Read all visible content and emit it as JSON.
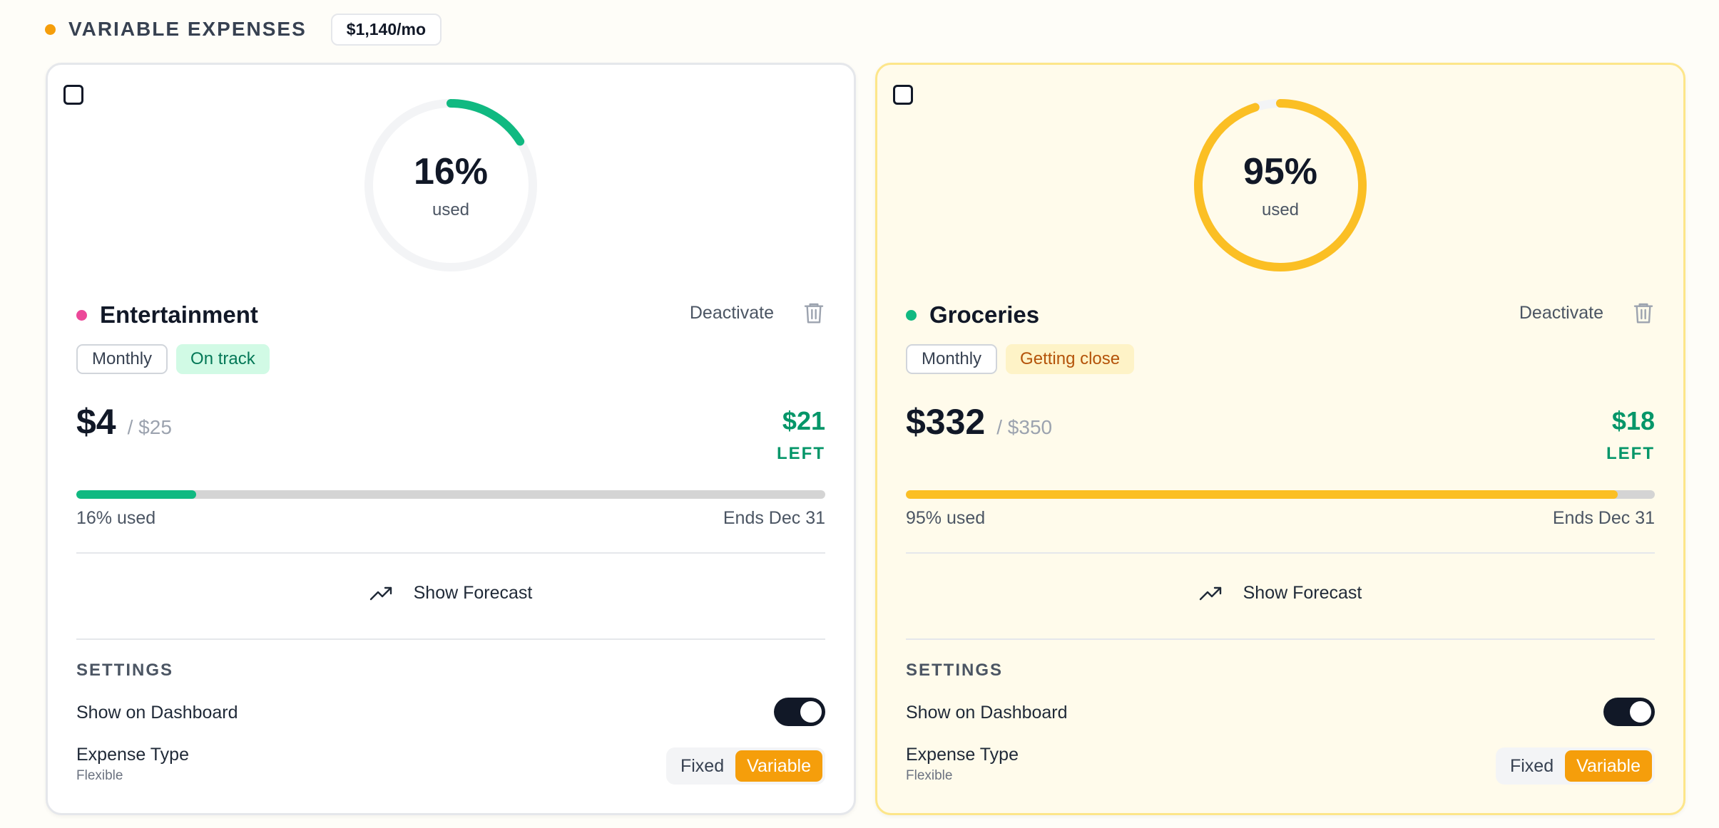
{
  "section": {
    "title": "VARIABLE EXPENSES",
    "total": "$1,140/mo",
    "dot_color": "#f59e0b"
  },
  "cards": [
    {
      "percent": 0.16,
      "percent_label": "16%",
      "used_label": "used",
      "name": "Entertainment",
      "dot_color": "#ec4899",
      "accent_color": "#10b981",
      "deactivate_label": "Deactivate",
      "period_tag": "Monthly",
      "status_tag": "On track",
      "spent": "$4",
      "budget": "/ $25",
      "left_amount": "$21",
      "left_label": "LEFT",
      "used_text": "16% used",
      "ends_text": "Ends Dec 31",
      "forecast_label": "Show Forecast",
      "settings_title": "SETTINGS",
      "show_dashboard_label": "Show on Dashboard",
      "show_dashboard_on": true,
      "expense_type_label": "Expense Type",
      "expense_type_sub": "Flexible",
      "type_fixed": "Fixed",
      "type_variable": "Variable",
      "selected_type": "Variable"
    },
    {
      "percent": 0.95,
      "percent_label": "95%",
      "used_label": "used",
      "name": "Groceries",
      "dot_color": "#10b981",
      "accent_color": "#fbbf24",
      "deactivate_label": "Deactivate",
      "period_tag": "Monthly",
      "status_tag": "Getting close",
      "spent": "$332",
      "budget": "/ $350",
      "left_amount": "$18",
      "left_label": "LEFT",
      "used_text": "95% used",
      "ends_text": "Ends Dec 31",
      "forecast_label": "Show Forecast",
      "settings_title": "SETTINGS",
      "show_dashboard_label": "Show on Dashboard",
      "show_dashboard_on": true,
      "expense_type_label": "Expense Type",
      "expense_type_sub": "Flexible",
      "type_fixed": "Fixed",
      "type_variable": "Variable",
      "selected_type": "Variable"
    }
  ]
}
